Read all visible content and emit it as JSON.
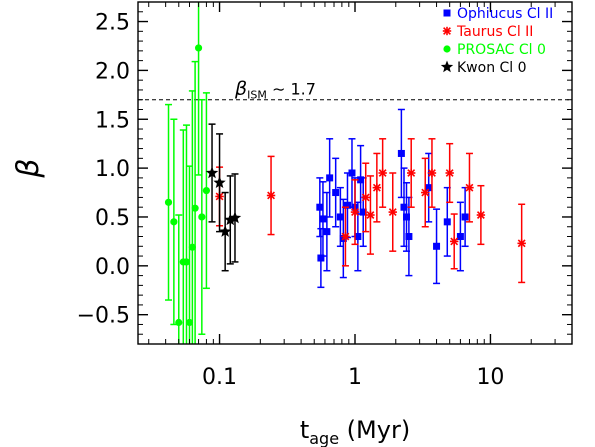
{
  "chart_data": {
    "type": "scatter",
    "xscale": "log",
    "xlim": [
      0.025,
      40
    ],
    "ylim": [
      -0.8,
      2.7
    ],
    "x_tick_labels": [
      "0.1",
      "1",
      "10"
    ],
    "x_ticks": [
      0.1,
      1,
      10
    ],
    "y_ticks": [
      -0.5,
      0.0,
      0.5,
      1.0,
      1.5,
      2.0,
      2.5
    ],
    "y_tick_labels": [
      "−0.5",
      "0.0",
      "0.5",
      "1.0",
      "1.5",
      "2.0",
      "2.5"
    ],
    "xlabel_main": "t",
    "xlabel_sub": "age",
    "xlabel_units": " (Myr)",
    "ylabel": "β",
    "reference_line": {
      "y": 1.7,
      "label_main": "β",
      "label_sub": "ISM",
      "label_rest": " ∼ 1.7",
      "style": "dashed"
    },
    "legend_position": "top-right",
    "series": [
      {
        "name": "Ophiucus Cl II",
        "color": "#0000ff",
        "marker": "square",
        "points": [
          {
            "x": 0.55,
            "y": 0.6,
            "err": 0.3
          },
          {
            "x": 0.56,
            "y": 0.08,
            "err": 0.3
          },
          {
            "x": 0.58,
            "y": 0.48,
            "err": 0.38
          },
          {
            "x": 0.62,
            "y": 0.35,
            "err": 0.4
          },
          {
            "x": 0.65,
            "y": 0.9,
            "err": 0.4
          },
          {
            "x": 0.72,
            "y": 0.75,
            "err": 0.35
          },
          {
            "x": 0.78,
            "y": 0.5,
            "err": 0.3
          },
          {
            "x": 0.82,
            "y": 0.28,
            "err": 0.4
          },
          {
            "x": 0.88,
            "y": 0.62,
            "err": 0.33
          },
          {
            "x": 0.95,
            "y": 0.95,
            "err": 0.35
          },
          {
            "x": 1.0,
            "y": 0.6,
            "err": 0.3
          },
          {
            "x": 1.05,
            "y": 0.3,
            "err": 0.35
          },
          {
            "x": 1.1,
            "y": 0.88,
            "err": 0.35
          },
          {
            "x": 1.15,
            "y": 0.55,
            "err": 0.35
          },
          {
            "x": 2.2,
            "y": 1.15,
            "err": 0.45
          },
          {
            "x": 2.3,
            "y": 0.6,
            "err": 0.4
          },
          {
            "x": 2.4,
            "y": 0.5,
            "err": 0.35
          },
          {
            "x": 2.5,
            "y": 0.3,
            "err": 0.4
          },
          {
            "x": 3.5,
            "y": 0.8,
            "err": 0.35
          },
          {
            "x": 4.0,
            "y": 0.2,
            "err": 0.38
          },
          {
            "x": 4.8,
            "y": 0.45,
            "err": 0.35
          },
          {
            "x": 6.0,
            "y": 0.3,
            "err": 0.35
          },
          {
            "x": 6.5,
            "y": 0.5,
            "err": 0.3
          }
        ]
      },
      {
        "name": "Taurus Cl II",
        "color": "#ff0000",
        "marker": "asterisk",
        "points": [
          {
            "x": 0.1,
            "y": 0.71,
            "err": 0.3
          },
          {
            "x": 0.24,
            "y": 0.72,
            "err": 0.4
          },
          {
            "x": 0.85,
            "y": 0.3,
            "err": 0.3
          },
          {
            "x": 1.0,
            "y": 0.55,
            "err": 0.33
          },
          {
            "x": 1.2,
            "y": 0.7,
            "err": 0.35
          },
          {
            "x": 1.3,
            "y": 0.52,
            "err": 0.4
          },
          {
            "x": 1.45,
            "y": 0.8,
            "err": 0.35
          },
          {
            "x": 1.6,
            "y": 0.95,
            "err": 0.35
          },
          {
            "x": 1.9,
            "y": 0.55,
            "err": 0.4
          },
          {
            "x": 2.6,
            "y": 0.95,
            "err": 0.35
          },
          {
            "x": 3.3,
            "y": 0.75,
            "err": 0.35
          },
          {
            "x": 3.7,
            "y": 0.95,
            "err": 0.35
          },
          {
            "x": 5.0,
            "y": 0.95,
            "err": 0.3
          },
          {
            "x": 5.4,
            "y": 0.25,
            "err": 0.28
          },
          {
            "x": 7.0,
            "y": 0.8,
            "err": 0.35
          },
          {
            "x": 8.5,
            "y": 0.52,
            "err": 0.3
          },
          {
            "x": 17.0,
            "y": 0.23,
            "err": 0.4
          }
        ]
      },
      {
        "name": "PROSAC Cl 0",
        "color": "#00ff00",
        "marker": "circle",
        "points": [
          {
            "x": 0.042,
            "y": 0.65,
            "err": 1.0
          },
          {
            "x": 0.046,
            "y": 0.45,
            "err": 1.05
          },
          {
            "x": 0.05,
            "y": -0.58,
            "err": 1.1
          },
          {
            "x": 0.054,
            "y": 0.04,
            "err": 1.35
          },
          {
            "x": 0.057,
            "y": 0.04,
            "err": 1.4
          },
          {
            "x": 0.06,
            "y": -0.58,
            "err": 1.6
          },
          {
            "x": 0.063,
            "y": 0.19,
            "err": 1.6
          },
          {
            "x": 0.066,
            "y": 0.59,
            "err": 1.5
          },
          {
            "x": 0.07,
            "y": 2.23,
            "err": 1.3
          },
          {
            "x": 0.074,
            "y": 0.5,
            "err": 1.2
          },
          {
            "x": 0.08,
            "y": 0.77,
            "err": 1.0
          }
        ]
      },
      {
        "name": "Kwon Cl 0",
        "color": "#000000",
        "marker": "star",
        "points": [
          {
            "x": 0.088,
            "y": 0.95,
            "err": 0.5
          },
          {
            "x": 0.1,
            "y": 0.85,
            "err": 0.5
          },
          {
            "x": 0.11,
            "y": 0.35,
            "err": 0.4
          },
          {
            "x": 0.12,
            "y": 0.47,
            "err": 0.45
          },
          {
            "x": 0.13,
            "y": 0.49,
            "err": 0.45
          }
        ]
      }
    ]
  }
}
